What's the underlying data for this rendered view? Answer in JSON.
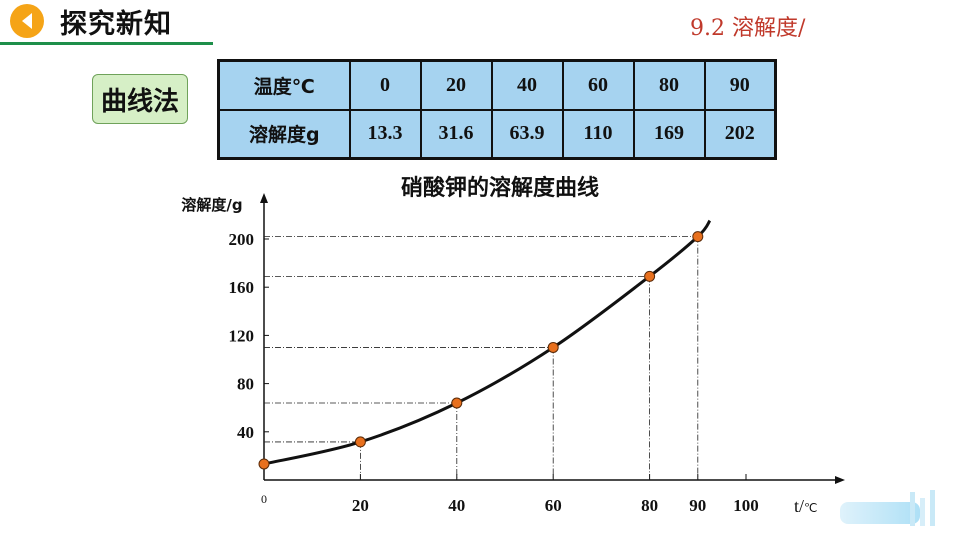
{
  "header": {
    "title": "探究新知",
    "section": "9.2 溶解度/"
  },
  "method_label": "曲线法",
  "table": {
    "row_headers": [
      "温度℃",
      "溶解度g"
    ],
    "temperatures": [
      "0",
      "20",
      "40",
      "60",
      "80",
      "90"
    ],
    "solubilities": [
      "13.3",
      "31.6",
      "63.9",
      "110",
      "169",
      "202"
    ]
  },
  "chart_data": {
    "type": "line",
    "title": "硝酸钾的溶解度曲线",
    "ylabel": "溶解度/g",
    "xlabel": "t/℃",
    "xlim": [
      0,
      100
    ],
    "ylim": [
      0,
      220
    ],
    "x_ticks": [
      {
        "v": 0,
        "label": "0"
      },
      {
        "v": 20,
        "label": "20"
      },
      {
        "v": 40,
        "label": "40"
      },
      {
        "v": 60,
        "label": "60"
      },
      {
        "v": 80,
        "label": "80"
      },
      {
        "v": 90,
        "label": "90"
      },
      {
        "v": 100,
        "label": "100"
      }
    ],
    "y_ticks": [
      40,
      80,
      120,
      160,
      200
    ],
    "points": [
      {
        "x": 0,
        "y": 13.3
      },
      {
        "x": 20,
        "y": 31.6
      },
      {
        "x": 40,
        "y": 63.9
      },
      {
        "x": 60,
        "y": 110
      },
      {
        "x": 80,
        "y": 169
      },
      {
        "x": 90,
        "y": 202
      }
    ],
    "curve_color": "#111111",
    "point_color": "#e8701e",
    "grid": false,
    "guide_lines": true
  }
}
